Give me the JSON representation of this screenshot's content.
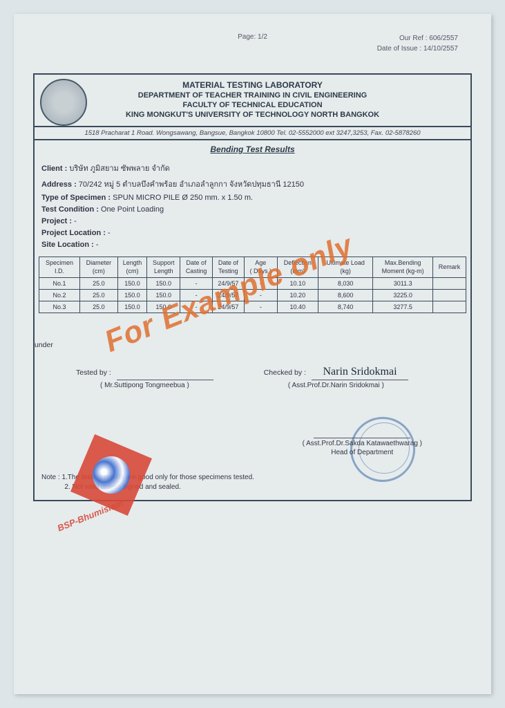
{
  "meta": {
    "page": "Page: 1/2",
    "ref": "Our Ref : 606/2557",
    "date": "Date of Issue : 14/10/2557"
  },
  "letterhead": {
    "l1": "MATERIAL TESTING LABORATORY",
    "l2": "DEPARTMENT OF TEACHER TRAINING IN CIVIL ENGINEERING",
    "l3": "FACULTY OF TECHNICAL EDUCATION",
    "l4": "KING MONGKUT'S UNIVERSITY OF TECHNOLOGY NORTH BANGKOK",
    "addr": "1518 Pracharat 1 Road. Wongsawang, Bangsue, Bangkok 10800   Tel. 02-5552000 ext 3247,3253, Fax. 02-5878260"
  },
  "title": "Bending Test Results",
  "info": {
    "client_lbl": "Client :",
    "client": " บริษัท ภูมิสยาม ซัพพลาย จำกัด",
    "addr_lbl": "Address :",
    "addr": " 70/242 หมู่ 5 ตำบลบึงคำพร้อย อำเภอลำลูกกา จังหวัดปทุมธานี 12150",
    "spec_lbl": "Type of Specimen :",
    "spec": " SPUN MICRO PILE Ø 250 mm. x 1.50 m.",
    "cond_lbl": "Test Condition :",
    "cond": " One Point Loading",
    "proj_lbl": "Project :",
    "proj": " -",
    "ploc_lbl": "Project Location :",
    "ploc": " -",
    "sloc_lbl": "Site Location :",
    "sloc": " -"
  },
  "cols": {
    "c0a": "Specimen",
    "c0b": "I.D.",
    "c1a": "Diameter",
    "c1b": "(cm)",
    "c2a": "Length",
    "c2b": "(cm)",
    "c3a": "Support",
    "c3b": "Length",
    "c4a": "Date of",
    "c4b": "Casting",
    "c5a": "Date of",
    "c5b": "Testing",
    "c6a": "Age",
    "c6b": "( Days )",
    "c7a": "Deflection",
    "c7b": "(mm)",
    "c8a": "Ultimate Load",
    "c8b": "(kg)",
    "c9a": "Max.Bending",
    "c9b": "Moment (kg-m)",
    "c10": "Remark"
  },
  "r1": {
    "id": "No.1",
    "dia": "25.0",
    "len": "150.0",
    "sup": "150.0",
    "cast": "-",
    "test": "24/9/57",
    "age": "-",
    "def": "10.10",
    "ult": "8,030",
    "mom": "3011.3",
    "rem": ""
  },
  "r2": {
    "id": "No.2",
    "dia": "25.0",
    "len": "150.0",
    "sup": "150.0",
    "cast": "-",
    "test": "24/9/57",
    "age": "-",
    "def": "10.20",
    "ult": "8,600",
    "mom": "3225.0",
    "rem": ""
  },
  "r3": {
    "id": "No.3",
    "dia": "25.0",
    "len": "150.0",
    "sup": "150.0",
    "cast": "-",
    "test": "24/9/57",
    "age": "-",
    "def": "10.40",
    "ult": "8,740",
    "mom": "3277.5",
    "rem": ""
  },
  "sigs": {
    "tested_lbl": "Tested by :",
    "tested_name": "( Mr.Suttipong Tongmeebua )",
    "checked_lbl": "Checked by :",
    "checked_sign": "Narin Sridokmai",
    "checked_name": "( Asst.Prof.Dr.Narin Sridokmai )",
    "head_name": "( Asst.Prof.Dr.Sakda Katawaethwarag )",
    "head_title": "Head of Department"
  },
  "notes": {
    "n1": "Note :  1.The testing results are good only for those specimens tested.",
    "n2": "            2. Not valid unless signed and sealed."
  },
  "watermark": {
    "main": "For Example only",
    "brand": "BSP-Bhumisiam"
  }
}
